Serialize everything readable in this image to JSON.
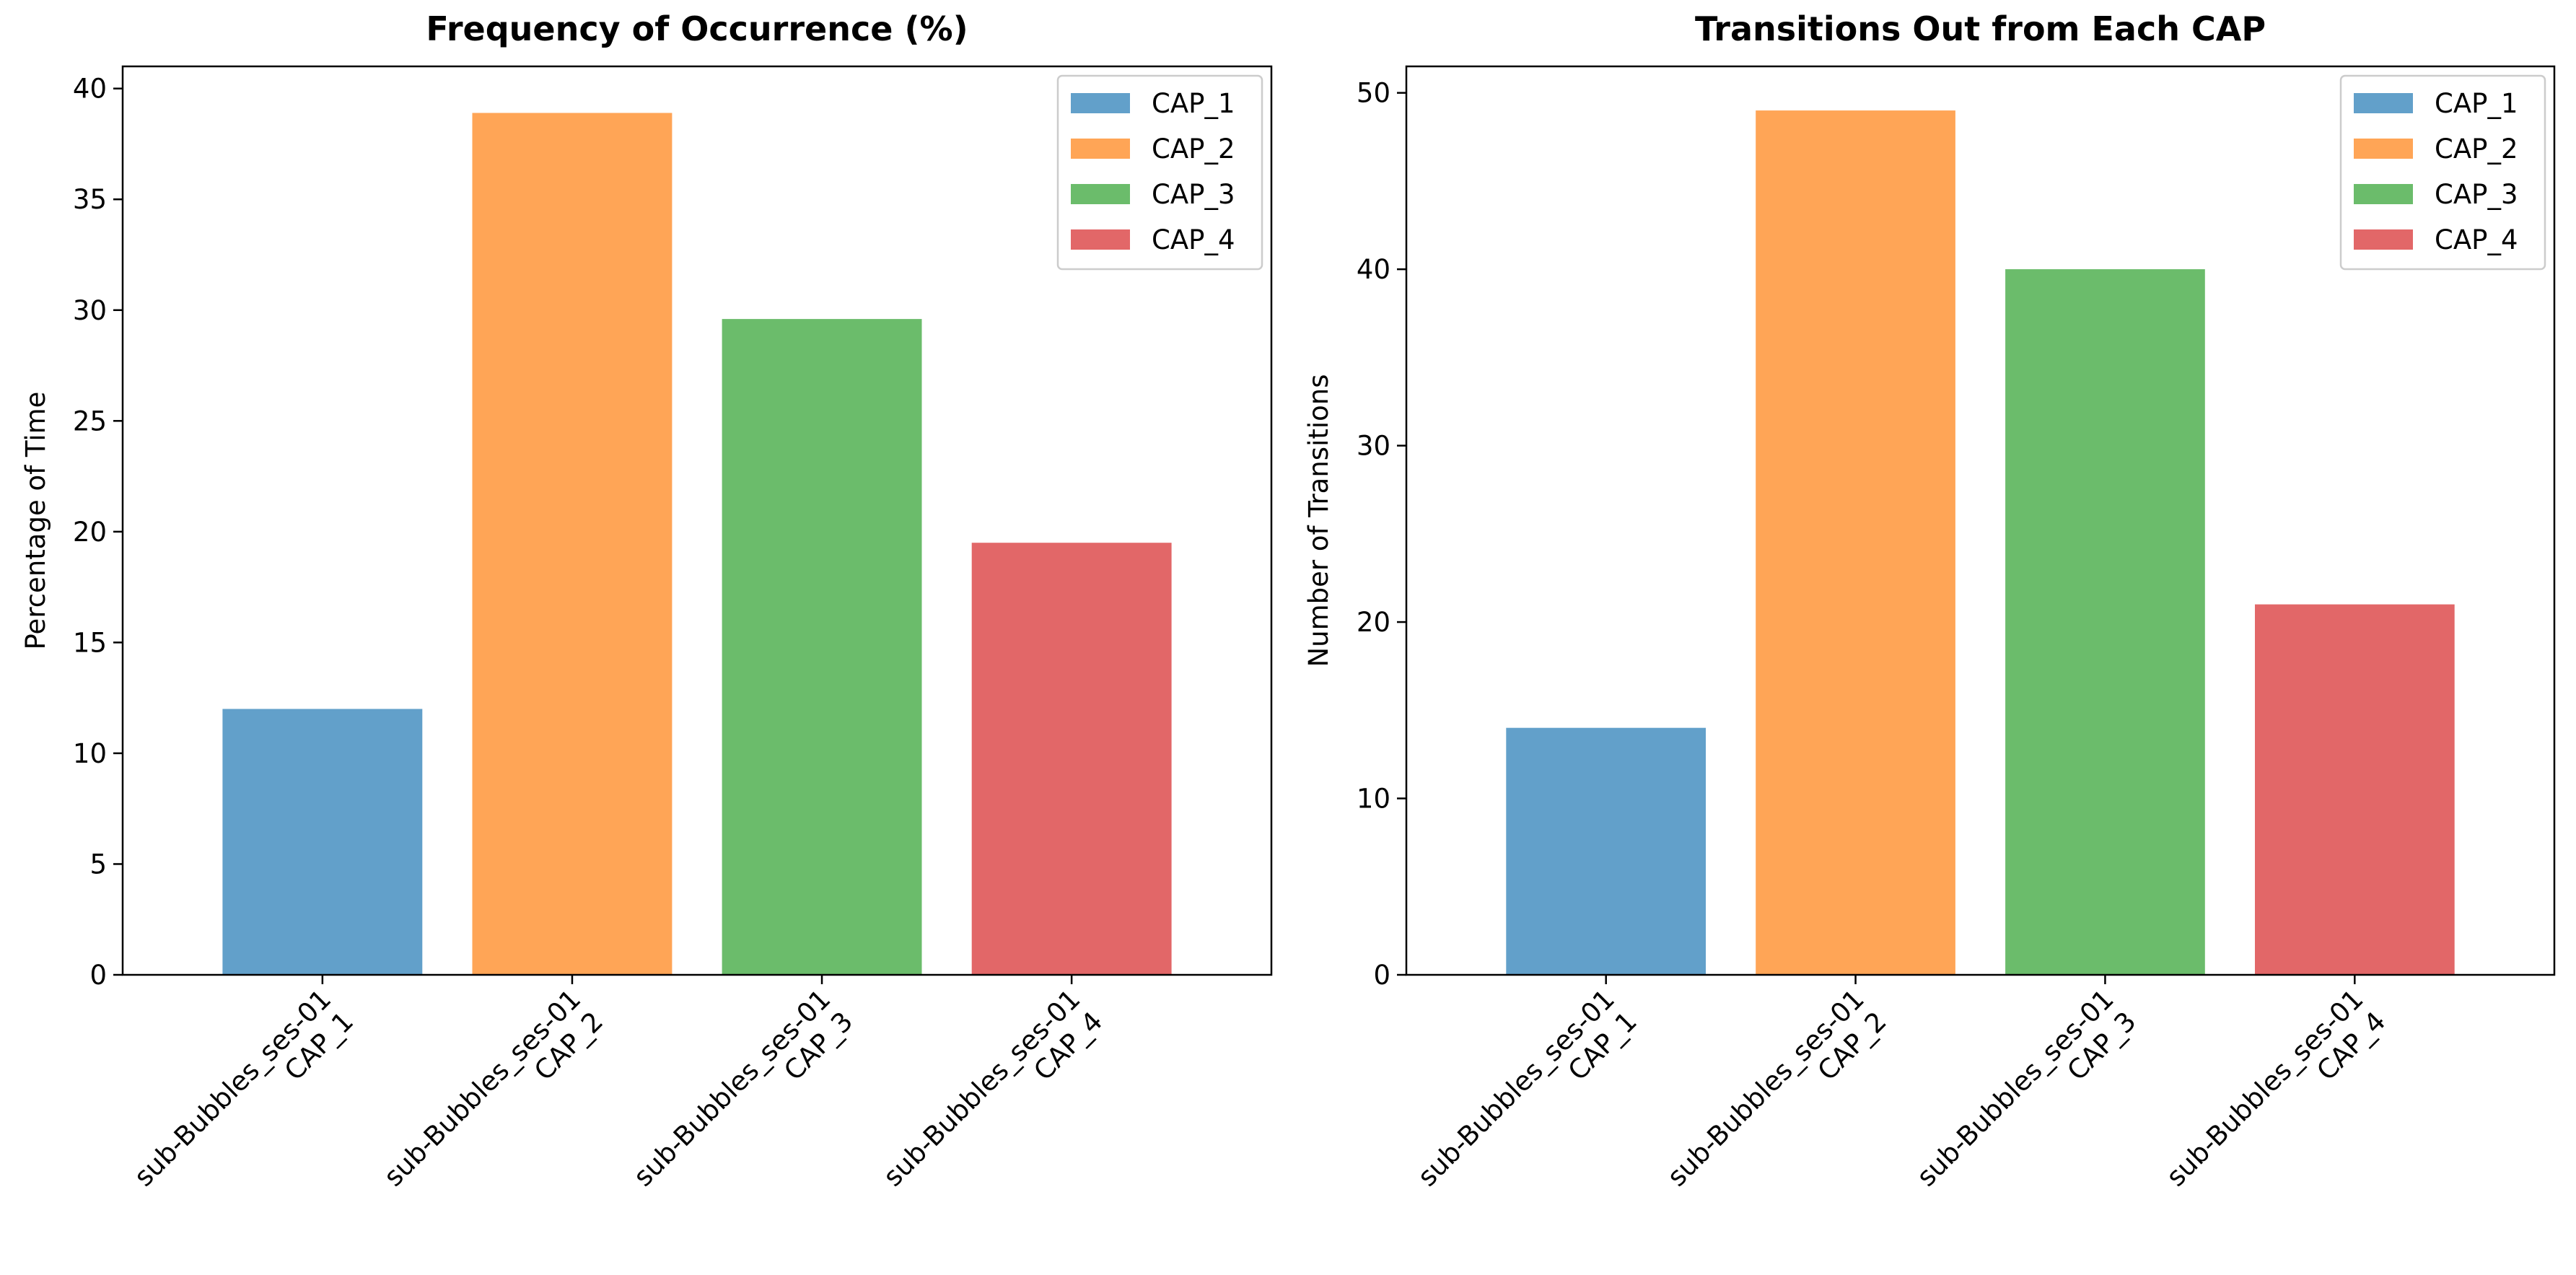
{
  "chart_data": [
    {
      "type": "bar",
      "title": "Frequency of Occurrence (%)",
      "xlabel": "",
      "ylabel": "Percentage of Time",
      "ylim": [
        0,
        41
      ],
      "yticks": [
        0,
        5,
        10,
        15,
        20,
        25,
        30,
        35,
        40
      ],
      "categories": [
        [
          "sub-Bubbles_ses-01",
          "CAP_1"
        ],
        [
          "sub-Bubbles_ses-01",
          "CAP_2"
        ],
        [
          "sub-Bubbles_ses-01",
          "CAP_3"
        ],
        [
          "sub-Bubbles_ses-01",
          "CAP_4"
        ]
      ],
      "values": [
        12.0,
        38.9,
        29.6,
        19.5
      ],
      "legend": [
        "CAP_1",
        "CAP_2",
        "CAP_3",
        "CAP_4"
      ],
      "legend_position": "top-right",
      "grid": false
    },
    {
      "type": "bar",
      "title": "Transitions Out from Each CAP",
      "xlabel": "",
      "ylabel": "Number of Transitions",
      "ylim": [
        0,
        51.5
      ],
      "yticks": [
        0,
        10,
        20,
        30,
        40,
        50
      ],
      "categories": [
        [
          "sub-Bubbles_ses-01",
          "CAP_1"
        ],
        [
          "sub-Bubbles_ses-01",
          "CAP_2"
        ],
        [
          "sub-Bubbles_ses-01",
          "CAP_3"
        ],
        [
          "sub-Bubbles_ses-01",
          "CAP_4"
        ]
      ],
      "values": [
        14,
        49,
        40,
        21
      ],
      "legend": [
        "CAP_1",
        "CAP_2",
        "CAP_3",
        "CAP_4"
      ],
      "legend_position": "top-right",
      "grid": false
    }
  ],
  "colors": {
    "bars": [
      "#1f77b4",
      "#ff7f0e",
      "#2ca02c",
      "#d62728"
    ],
    "bar_opacity": 0.7
  }
}
